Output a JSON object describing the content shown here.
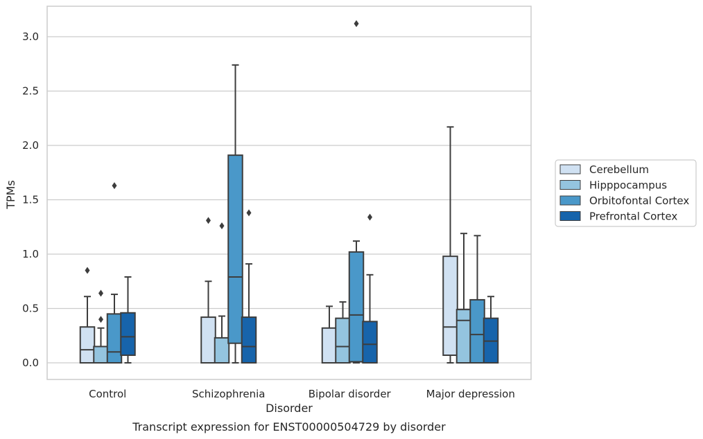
{
  "chart_data": {
    "type": "box",
    "caption": "Transcript expression for ENST00000504729 by disorder",
    "xlabel": "Disorder",
    "ylabel": "TPMs",
    "ylim": [
      -0.15,
      3.28
    ],
    "yticks": [
      "0.0",
      "0.5",
      "1.0",
      "1.5",
      "2.0",
      "2.5",
      "3.0"
    ],
    "grid": true,
    "legend_position": "right",
    "categories": [
      "Control",
      "Schizophrenia",
      "Bipolar disorder",
      "Major depression"
    ],
    "series": [
      {
        "name": "Cerebellum",
        "color": "#d0e1f2",
        "boxes": [
          {
            "whislo": 0.0,
            "q1": 0.0,
            "med": 0.12,
            "q3": 0.33,
            "whishi": 0.61,
            "fliers": [
              0.85
            ]
          },
          {
            "whislo": 0.0,
            "q1": 0.0,
            "med": 0.0,
            "q3": 0.42,
            "whishi": 0.75,
            "fliers": [
              1.31
            ]
          },
          {
            "whislo": 0.0,
            "q1": 0.0,
            "med": 0.0,
            "q3": 0.32,
            "whishi": 0.52,
            "fliers": []
          },
          {
            "whislo": 0.0,
            "q1": 0.07,
            "med": 0.33,
            "q3": 0.98,
            "whishi": 2.17,
            "fliers": []
          }
        ]
      },
      {
        "name": "Hipppocampus",
        "color": "#94c4df",
        "boxes": [
          {
            "whislo": 0.0,
            "q1": 0.0,
            "med": 0.0,
            "q3": 0.15,
            "whishi": 0.32,
            "fliers": [
              0.4,
              0.64
            ]
          },
          {
            "whislo": 0.0,
            "q1": 0.0,
            "med": 0.0,
            "q3": 0.23,
            "whishi": 0.43,
            "fliers": [
              1.26
            ]
          },
          {
            "whislo": 0.0,
            "q1": 0.0,
            "med": 0.15,
            "q3": 0.41,
            "whishi": 0.56,
            "fliers": []
          },
          {
            "whislo": 0.0,
            "q1": 0.0,
            "med": 0.39,
            "q3": 0.49,
            "whishi": 1.19,
            "fliers": []
          }
        ]
      },
      {
        "name": "Orbitofontal Cortex",
        "color": "#4a98c9",
        "boxes": [
          {
            "whislo": 0.0,
            "q1": 0.0,
            "med": 0.1,
            "q3": 0.45,
            "whishi": 0.63,
            "fliers": [
              1.63
            ]
          },
          {
            "whislo": 0.0,
            "q1": 0.18,
            "med": 0.79,
            "q3": 1.91,
            "whishi": 2.74,
            "fliers": []
          },
          {
            "whislo": 0.0,
            "q1": 0.01,
            "med": 0.44,
            "q3": 1.02,
            "whishi": 1.12,
            "fliers": [
              3.12
            ]
          },
          {
            "whislo": 0.0,
            "q1": 0.0,
            "med": 0.26,
            "q3": 0.58,
            "whishi": 1.17,
            "fliers": []
          }
        ]
      },
      {
        "name": "Prefrontal Cortex",
        "color": "#1764ab",
        "boxes": [
          {
            "whislo": 0.0,
            "q1": 0.07,
            "med": 0.24,
            "q3": 0.46,
            "whishi": 0.79,
            "fliers": []
          },
          {
            "whislo": 0.0,
            "q1": 0.0,
            "med": 0.15,
            "q3": 0.42,
            "whishi": 0.91,
            "fliers": [
              1.38
            ]
          },
          {
            "whislo": 0.0,
            "q1": 0.0,
            "med": 0.17,
            "q3": 0.38,
            "whishi": 0.81,
            "fliers": [
              1.34
            ]
          },
          {
            "whislo": 0.0,
            "q1": 0.0,
            "med": 0.2,
            "q3": 0.41,
            "whishi": 0.61,
            "fliers": []
          }
        ]
      }
    ]
  }
}
